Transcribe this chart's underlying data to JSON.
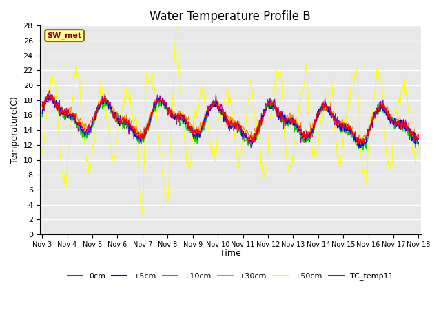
{
  "title": "Water Temperature Profile B",
  "xlabel": "Time",
  "ylabel": "Temperature(C)",
  "ylim": [
    0,
    28
  ],
  "yticks": [
    0,
    2,
    4,
    6,
    8,
    10,
    12,
    14,
    16,
    18,
    20,
    22,
    24,
    26,
    28
  ],
  "xtick_labels": [
    "Nov 3",
    "Nov 4",
    "Nov 5",
    "Nov 6",
    "Nov 7",
    "Nov 8",
    "Nov 9",
    "Nov 10",
    "Nov 11",
    "Nov 12",
    "Nov 13",
    "Nov 14",
    "Nov 15",
    "Nov 16",
    "Nov 17",
    "Nov 18"
  ],
  "annotation_text": "SW_met",
  "annotation_color": "#8B0000",
  "annotation_bg": "#FFFF99",
  "annotation_border": "#8B6914",
  "series_colors": {
    "0cm": "#FF0000",
    "+5cm": "#0000FF",
    "+10cm": "#00CC00",
    "+30cm": "#FF8C00",
    "+50cm": "#FFFF00",
    "TC_temp11": "#AA00AA"
  },
  "plot_bg_color": "#E8E8E8",
  "grid_color": "#FFFFFF",
  "title_fontsize": 12
}
